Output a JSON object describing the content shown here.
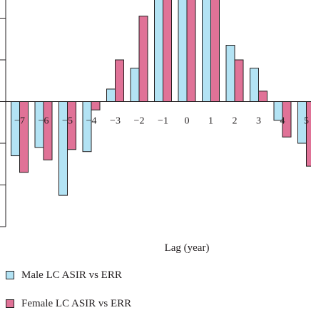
{
  "chart_data": {
    "type": "bar",
    "xlabel": "Lag (year)",
    "ylabel": "",
    "title": "",
    "categories": [
      "−7",
      "−6",
      "−5",
      "−4",
      "−3",
      "−2",
      "−1",
      "0",
      "1",
      "2",
      "3",
      "4",
      "5"
    ],
    "series": [
      {
        "name": "Male LC ASIR vs ERR",
        "values": [
          -0.26,
          -0.22,
          -0.45,
          -0.24,
          0.06,
          0.16,
          0.59,
          0.86,
          0.65,
          0.27,
          0.16,
          -0.09,
          -0.2
        ]
      },
      {
        "name": "Female LC ASIR vs ERR",
        "values": [
          -0.34,
          -0.28,
          -0.23,
          -0.04,
          0.2,
          0.41,
          0.78,
          0.97,
          0.67,
          0.2,
          0.05,
          -0.17,
          -0.31
        ]
      }
    ],
    "ylim": [
      -0.6,
      1.0
    ],
    "yticks": [
      -0.6,
      -0.4,
      -0.2,
      0.0,
      0.2,
      0.4,
      0.6,
      0.8,
      1.0
    ],
    "grid": false,
    "legend": "bottom-left"
  },
  "colors": {
    "male": "#b3e3f4",
    "female": "#e07297",
    "stroke": "#231f20"
  }
}
